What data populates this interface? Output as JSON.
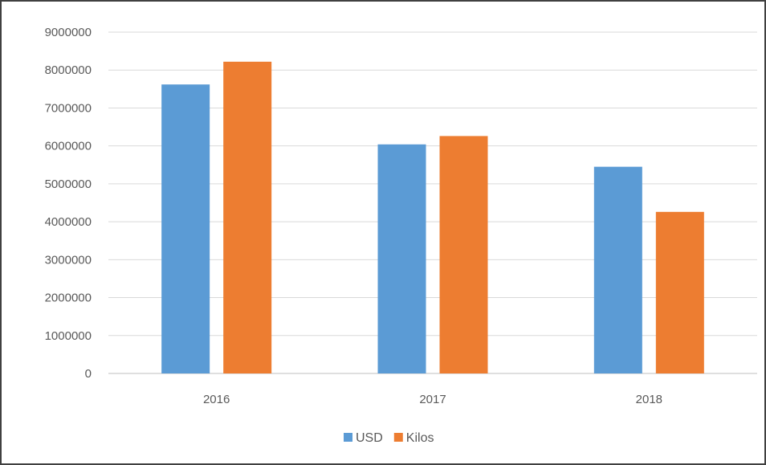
{
  "chart_data": {
    "type": "bar",
    "categories": [
      "2016",
      "2017",
      "2018"
    ],
    "series": [
      {
        "name": "USD",
        "values": [
          7620000,
          6040000,
          5450000
        ],
        "color": "#5B9BD5"
      },
      {
        "name": "Kilos",
        "values": [
          8220000,
          6260000,
          4260000
        ],
        "color": "#ED7D31"
      }
    ],
    "y_ticks": [
      "0",
      "1000000",
      "2000000",
      "3000000",
      "4000000",
      "5000000",
      "6000000",
      "7000000",
      "8000000",
      "9000000"
    ],
    "ylim": [
      0,
      9000000
    ],
    "grid": true,
    "legend_position": "bottom",
    "gridline_color": "#D9D9D9",
    "axis_color": "#BFBFBF"
  }
}
